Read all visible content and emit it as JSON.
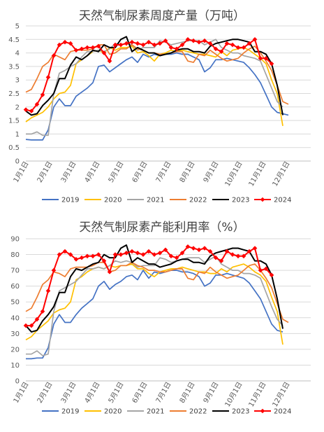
{
  "chart_data": [
    {
      "type": "line",
      "title": "天然气制尿素周度产量（万吨）",
      "ylim": [
        0,
        5
      ],
      "yticks": [
        "0",
        "0.5",
        "1",
        "1.5",
        "2",
        "2.5",
        "3",
        "3.5",
        "4",
        "4.5",
        "5"
      ],
      "x_labels": [
        "1月1日",
        "2月1日",
        "3月1日",
        "4月1日",
        "5月1日",
        "6月1日",
        "7月1日",
        "8月1日",
        "9月1日",
        "10月1日",
        "11月1日",
        "12月1日"
      ],
      "grid": true,
      "legend": "bottom",
      "series": [
        {
          "name": "2019",
          "color": "#4472c4",
          "values": [
            0.8,
            0.78,
            0.78,
            0.78,
            1.15,
            2.0,
            2.3,
            2.05,
            2.05,
            2.4,
            2.55,
            2.7,
            2.9,
            3.5,
            3.55,
            3.3,
            3.45,
            3.6,
            3.75,
            3.85,
            3.65,
            3.95,
            3.85,
            3.95,
            3.9,
            3.95,
            3.95,
            4.0,
            3.95,
            3.95,
            3.85,
            3.75,
            3.3,
            3.45,
            3.75,
            3.75,
            3.8,
            3.75,
            3.7,
            3.65,
            3.45,
            3.2,
            2.9,
            2.45,
            2.0,
            1.8,
            1.75,
            1.7
          ]
        },
        {
          "name": "2020",
          "color": "#ffc000",
          "values": [
            1.45,
            1.6,
            1.7,
            1.8,
            2.0,
            2.3,
            2.5,
            2.55,
            2.8,
            3.6,
            3.75,
            3.9,
            4.05,
            4.1,
            4.0,
            4.2,
            4.1,
            4.2,
            4.2,
            4.25,
            4.0,
            4.05,
            3.9,
            3.7,
            3.95,
            4.0,
            4.1,
            4.05,
            4.1,
            4.05,
            4.0,
            3.95,
            3.95,
            3.9,
            3.85,
            4.05,
            3.9,
            4.1,
            4.15,
            4.2,
            4.1,
            3.95,
            3.8,
            3.6,
            3.0,
            2.5,
            1.3
          ]
        },
        {
          "name": "2021",
          "color": "#a5a5a5",
          "values": [
            1.0,
            1.0,
            1.08,
            0.95,
            0.95,
            2.5,
            3.25,
            3.35,
            3.5,
            3.6,
            3.85,
            4.05,
            4.05,
            4.1,
            4.05,
            4.15,
            4.35,
            4.3,
            4.35,
            4.3,
            4.1,
            4.2,
            4.2,
            4.2,
            4.45,
            4.4,
            4.3,
            4.35,
            4.4,
            4.45,
            4.45,
            4.45,
            4.3,
            4.4,
            4.5,
            4.2,
            4.1,
            4.0,
            4.0,
            3.9,
            3.85,
            3.8,
            3.7,
            3.2,
            2.7,
            2.2,
            2.0
          ]
        },
        {
          "name": "2022",
          "color": "#ed7d31",
          "values": [
            2.55,
            2.65,
            3.05,
            3.5,
            3.65,
            3.95,
            3.85,
            3.75,
            4.05,
            4.1,
            4.1,
            4.1,
            4.15,
            4.3,
            4.3,
            3.95,
            4.0,
            4.15,
            4.15,
            4.3,
            4.15,
            4.1,
            4.0,
            4.0,
            3.95,
            3.95,
            4.0,
            4.05,
            4.05,
            3.7,
            3.65,
            3.95,
            3.9,
            4.1,
            3.95,
            3.8,
            3.7,
            3.75,
            3.8,
            4.0,
            4.15,
            4.25,
            4.0,
            3.7,
            3.35,
            2.8,
            2.2,
            2.1
          ]
        },
        {
          "name": "2023",
          "color": "#000000",
          "values": [
            1.85,
            1.7,
            1.75,
            2.05,
            2.25,
            2.5,
            3.05,
            3.05,
            3.55,
            3.85,
            3.75,
            3.9,
            4.1,
            4.05,
            4.3,
            4.2,
            4.2,
            4.5,
            4.6,
            4.05,
            4.2,
            4.1,
            4.0,
            4.0,
            3.9,
            3.95,
            4.0,
            4.1,
            4.15,
            4.15,
            4.05,
            4.05,
            4.0,
            4.25,
            4.35,
            4.4,
            4.45,
            4.5,
            4.5,
            4.45,
            4.4,
            4.05,
            4.05,
            3.95,
            3.6,
            2.8,
            1.7
          ]
        },
        {
          "name": "2024",
          "color": "#ff0000",
          "values": [
            1.9,
            1.85,
            2.1,
            2.45,
            3.1,
            3.9,
            4.3,
            4.4,
            4.35,
            4.1,
            4.15,
            4.2,
            4.2,
            4.25,
            4.0,
            3.7,
            4.3,
            4.3,
            4.35,
            4.4,
            4.35,
            4.3,
            4.4,
            4.3,
            4.35,
            4.45,
            4.2,
            4.15,
            4.3,
            4.5,
            4.45,
            4.4,
            4.45,
            4.35,
            4.15,
            4.05,
            4.35,
            4.3,
            4.2,
            4.2,
            4.35,
            4.5,
            3.8,
            3.8,
            3.6
          ]
        }
      ]
    },
    {
      "type": "line",
      "title": "天然气制尿素产能利用率（%）",
      "ylim": [
        0,
        90
      ],
      "yticks": [
        "0",
        "10",
        "20",
        "30",
        "40",
        "50",
        "60",
        "70",
        "80",
        "90"
      ],
      "x_labels": [
        "1月1日",
        "2月1日",
        "3月1日",
        "4月1日",
        "5月1日",
        "6月1日",
        "7月1日",
        "8月1日",
        "9月1日",
        "10月1日",
        "11月1日",
        "12月1日"
      ],
      "grid": true,
      "legend": "bottom",
      "series": [
        {
          "name": "2019",
          "color": "#4472c4",
          "values": [
            14,
            14,
            14.5,
            14.5,
            21,
            36,
            42,
            37,
            37,
            42,
            46,
            49,
            52,
            60,
            63,
            58,
            61,
            63,
            66,
            67,
            64,
            70,
            65,
            69,
            68,
            69,
            70,
            70,
            69,
            69,
            68,
            66,
            60,
            62,
            67,
            67,
            68,
            67,
            66,
            65,
            62,
            57,
            52,
            44,
            36,
            32,
            31
          ]
        },
        {
          "name": "2020",
          "color": "#ffc000",
          "values": [
            26,
            28,
            32,
            35,
            38,
            43,
            45,
            46,
            50,
            64,
            66,
            69,
            71,
            72,
            71,
            73,
            72,
            73,
            73,
            74,
            71,
            71,
            68,
            66,
            69,
            70,
            71,
            71,
            72,
            71,
            70,
            69,
            69,
            68,
            68,
            71,
            69,
            72,
            73,
            74,
            72,
            69,
            67,
            63,
            53,
            44,
            23
          ]
        },
        {
          "name": "2021",
          "color": "#a5a5a5",
          "values": [
            17,
            17,
            19,
            16,
            17,
            44,
            57,
            59,
            61,
            63,
            67,
            71,
            71,
            72,
            71,
            73,
            76,
            75,
            76,
            75,
            72,
            73,
            73,
            73,
            78,
            77,
            75,
            76,
            77,
            78,
            78,
            78,
            75,
            77,
            79,
            74,
            72,
            70,
            70,
            68,
            68,
            67,
            65,
            56,
            47,
            39,
            35
          ]
        },
        {
          "name": "2022",
          "color": "#ed7d31",
          "values": [
            44,
            46,
            53,
            61,
            64,
            69,
            68,
            66,
            71,
            72,
            72,
            72,
            73,
            75,
            75,
            69,
            70,
            73,
            73,
            75,
            73,
            72,
            70,
            70,
            69,
            69,
            70,
            71,
            71,
            65,
            64,
            69,
            68,
            72,
            69,
            67,
            65,
            66,
            67,
            70,
            73,
            74,
            70,
            65,
            59,
            49,
            39,
            37
          ]
        },
        {
          "name": "2023",
          "color": "#000000",
          "values": [
            35,
            31,
            32,
            38,
            42,
            47,
            56,
            56,
            66,
            71,
            70,
            72,
            74,
            75,
            80,
            78,
            78,
            84,
            86,
            75,
            78,
            76,
            74,
            74,
            72,
            73,
            74,
            76,
            77,
            77,
            75,
            75,
            74,
            79,
            81,
            82,
            83,
            84,
            84,
            83,
            82,
            76,
            76,
            74,
            67,
            52,
            33
          ]
        },
        {
          "name": "2024",
          "color": "#ff0000",
          "values": [
            35,
            35,
            39,
            44,
            57,
            70,
            80,
            82,
            80,
            77,
            78,
            79,
            79,
            80,
            76,
            69,
            80,
            80,
            81,
            82,
            81,
            80,
            82,
            80,
            81,
            83,
            79,
            78,
            81,
            85,
            84,
            83,
            84,
            82,
            78,
            76,
            82,
            80,
            79,
            79,
            82,
            84,
            70,
            71,
            67
          ]
        }
      ]
    }
  ]
}
